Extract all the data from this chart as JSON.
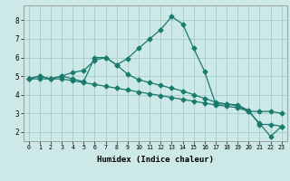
{
  "xlabel": "Humidex (Indice chaleur)",
  "background_color": "#cce9e7",
  "grid_color": "#aacfcd",
  "line_color": "#1a7a6e",
  "xlim": [
    -0.5,
    23.5
  ],
  "ylim": [
    1.5,
    8.8
  ],
  "xticks": [
    0,
    1,
    2,
    3,
    4,
    5,
    6,
    7,
    8,
    9,
    10,
    11,
    12,
    13,
    14,
    15,
    16,
    17,
    18,
    19,
    20,
    21,
    22,
    23
  ],
  "yticks": [
    2,
    3,
    4,
    5,
    6,
    7,
    8
  ],
  "curve1_x": [
    0,
    1,
    2,
    3,
    4,
    5,
    6,
    7,
    8,
    9,
    10,
    11,
    12,
    13,
    14,
    15,
    16,
    17,
    18,
    19,
    20,
    21,
    22,
    23
  ],
  "curve1_y": [
    4.85,
    5.0,
    4.85,
    5.0,
    5.2,
    5.3,
    5.85,
    6.0,
    5.6,
    5.95,
    6.5,
    7.0,
    7.5,
    8.2,
    7.8,
    6.5,
    5.25,
    3.5,
    3.5,
    3.45,
    3.15,
    2.4,
    2.4,
    2.3
  ],
  "curve2_x": [
    0,
    1,
    2,
    3,
    4,
    5,
    6,
    7,
    8,
    9,
    10,
    11,
    12,
    13,
    14,
    15,
    16,
    17,
    18,
    19,
    20,
    21,
    22,
    23
  ],
  "curve2_y": [
    4.85,
    5.0,
    4.85,
    5.0,
    4.85,
    4.7,
    6.0,
    6.0,
    5.6,
    5.1,
    4.8,
    4.65,
    4.5,
    4.35,
    4.2,
    4.0,
    3.8,
    3.6,
    3.5,
    3.4,
    3.1,
    2.45,
    1.75,
    2.3
  ],
  "curve3_x": [
    0,
    1,
    2,
    3,
    4,
    5,
    6,
    7,
    8,
    9,
    10,
    11,
    12,
    13,
    14,
    15,
    16,
    17,
    18,
    19,
    20,
    21,
    22,
    23
  ],
  "curve3_y": [
    4.85,
    4.85,
    4.85,
    4.85,
    4.75,
    4.65,
    4.55,
    4.45,
    4.35,
    4.25,
    4.15,
    4.05,
    3.95,
    3.85,
    3.75,
    3.65,
    3.55,
    3.45,
    3.38,
    3.3,
    3.1,
    3.1,
    3.1,
    3.0
  ],
  "marker": "D",
  "markersize": 2.5,
  "linewidth": 0.9
}
